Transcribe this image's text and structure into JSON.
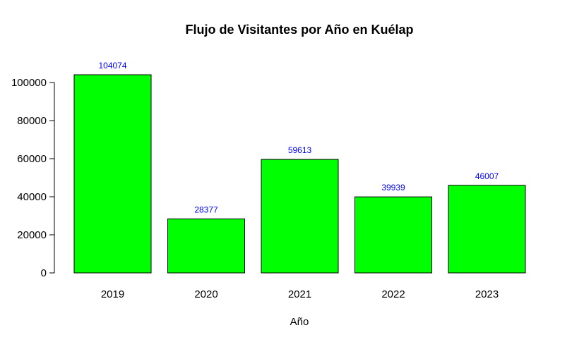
{
  "chart_data": {
    "type": "bar",
    "title": "Flujo de Visitantes por Año en Kuélap",
    "xlabel": "Año",
    "ylabel": "",
    "categories": [
      "2019",
      "2020",
      "2021",
      "2022",
      "2023"
    ],
    "values": [
      104074,
      28377,
      59613,
      39939,
      46007
    ],
    "data_labels": [
      "104074",
      "28377",
      "59613",
      "39939",
      "46007"
    ],
    "y_ticks": [
      0,
      20000,
      40000,
      60000,
      80000,
      100000
    ],
    "y_tick_labels": [
      "0",
      "20000",
      "40000",
      "60000",
      "80000",
      "100000"
    ],
    "ylim": [
      0,
      104074
    ],
    "grid": false,
    "legend": "none",
    "colors": {
      "bar_fill": "#00ff00",
      "bar_border": "#000000",
      "data_label": "#0000ff"
    }
  }
}
